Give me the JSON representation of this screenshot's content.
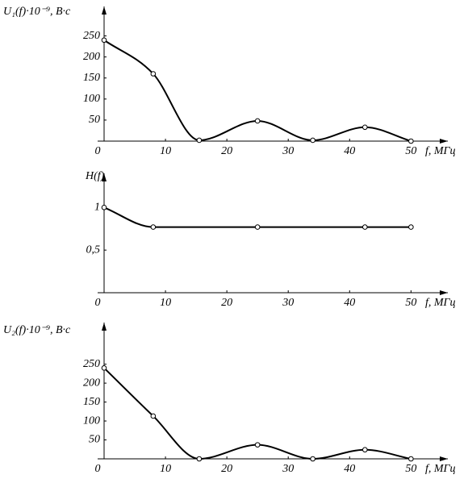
{
  "chart_data": [
    {
      "type": "line",
      "ylabel": "U₁(f)·10⁻⁹, В·с",
      "xlabel": "f, МГц",
      "x": [
        0,
        8,
        15.5,
        25,
        34,
        42.5,
        50
      ],
      "series": [
        {
          "color": "#000000",
          "values": [
            240,
            160,
            2,
            48,
            2,
            33,
            0
          ]
        }
      ],
      "xlim": [
        0,
        56
      ],
      "xticks": [
        0,
        10,
        20,
        30,
        40,
        50
      ],
      "ylim": [
        0,
        320
      ],
      "yticks": [
        50,
        100,
        150,
        200,
        250
      ]
    },
    {
      "type": "line",
      "ylabel": "H(f)",
      "xlabel": "f, МГц",
      "x": [
        0,
        8,
        25,
        42.5,
        50
      ],
      "series": [
        {
          "color": "#000000",
          "values": [
            1,
            0.77,
            0.77,
            0.77,
            0.77
          ]
        }
      ],
      "xlim": [
        0,
        56
      ],
      "xticks": [
        0,
        10,
        20,
        30,
        40,
        50
      ],
      "ylim": [
        0,
        1.4
      ],
      "yticks": [
        {
          "value": 0.5,
          "label": "0,5"
        },
        1
      ]
    },
    {
      "type": "line",
      "ylabel": "U₂(f)·10⁻⁹, В·с",
      "xlabel": "f, МГц",
      "x": [
        0,
        8,
        15.5,
        25,
        34,
        42.5,
        50
      ],
      "series": [
        {
          "color": "#000000",
          "values": [
            240,
            113,
            0,
            37,
            0,
            24,
            0
          ]
        }
      ],
      "xlim": [
        0,
        56
      ],
      "xticks": [
        0,
        10,
        20,
        30,
        40,
        50
      ],
      "ylim": [
        0,
        360
      ],
      "yticks": [
        50,
        100,
        150,
        200,
        250
      ]
    }
  ]
}
